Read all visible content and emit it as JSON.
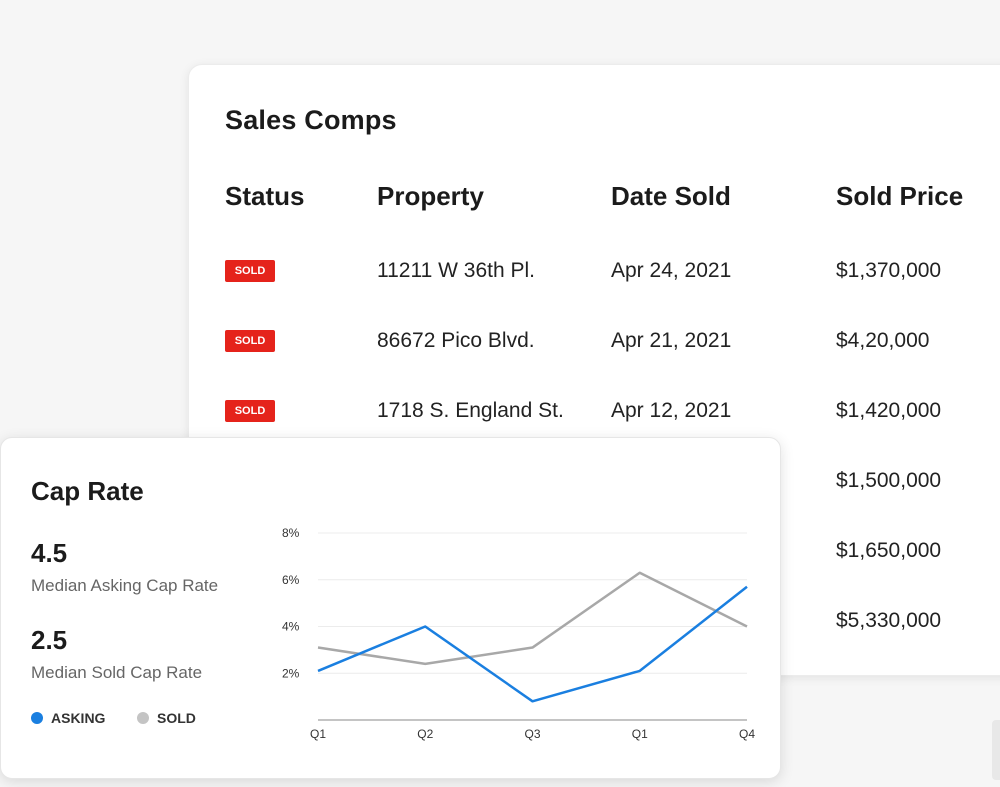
{
  "sales_comps": {
    "title": "Sales Comps",
    "headers": [
      "Status",
      "Property",
      "Date Sold",
      "Sold Price"
    ],
    "rows": [
      {
        "status": "SOLD",
        "property": "11211 W 36th Pl.",
        "date": "Apr 24, 2021",
        "price": "$1,370,000"
      },
      {
        "status": "SOLD",
        "property": "86672 Pico Blvd.",
        "date": "Apr 21, 2021",
        "price": "$4,20,000"
      },
      {
        "status": "SOLD",
        "property": "1718 S. England St.",
        "date": "Apr 12, 2021",
        "price": "$1,420,000"
      },
      {
        "status": "",
        "property": "",
        "date": "",
        "price": "$1,500,000"
      },
      {
        "status": "",
        "property": "",
        "date": "",
        "price": "$1,650,000"
      },
      {
        "status": "",
        "property": "",
        "date": "",
        "price": "$5,330,000"
      }
    ],
    "badge_color": "#e5231b"
  },
  "cap_rate": {
    "title": "Cap Rate",
    "asking_value": "4.5",
    "asking_label": "Median Asking Cap Rate",
    "sold_value": "2.5",
    "sold_label": "Median Sold Cap Rate",
    "legend": [
      {
        "label": "ASKING",
        "color": "#1a7fe0"
      },
      {
        "label": "SOLD",
        "color": "#c4c4c4"
      }
    ]
  },
  "chart_data": {
    "type": "line",
    "categories": [
      "Q1",
      "Q2",
      "Q3",
      "Q1",
      "Q4"
    ],
    "y_ticks": [
      "2%",
      "4%",
      "6%",
      "8%"
    ],
    "ylim": [
      0,
      8
    ],
    "grid": true,
    "series": [
      {
        "name": "ASKING",
        "color": "#1a7fe0",
        "values": [
          2.1,
          4.0,
          0.8,
          2.1,
          5.7
        ]
      },
      {
        "name": "SOLD",
        "color": "#a8a8a8",
        "values": [
          3.1,
          2.4,
          3.1,
          6.3,
          4.0
        ]
      }
    ]
  }
}
